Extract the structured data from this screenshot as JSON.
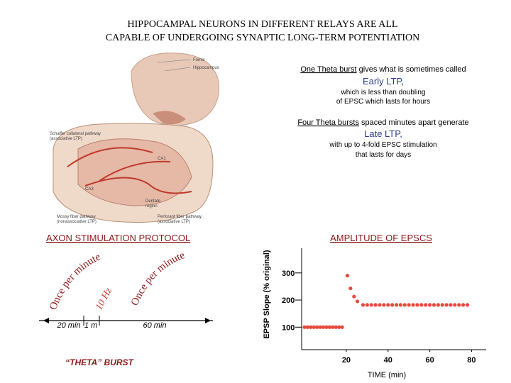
{
  "title": [
    "HIPPOCAMPAL NEURONS IN DIFFERENT RELAYS ARE ALL",
    "CAPABLE OF UNDERGOING SYNAPTIC LONG-TERM POTENTIATION"
  ],
  "figure": {
    "fornix": "Fornix",
    "hippocampus": "Hippocampus",
    "schaffer": [
      "Schaffer collateral pathway",
      "(associative LTP)"
    ],
    "ca1": "CA1",
    "ca3": "CA3",
    "dentate": [
      "Dentate",
      "region"
    ],
    "mossy": [
      "Mossy fiber pathway",
      "(nonassociative LTP)"
    ],
    "perforant": [
      "Perforant fiber pathway",
      "(associative LTP)"
    ]
  },
  "notes": {
    "early": {
      "lead": "One Theta burst",
      "rest": " gives what is sometimes called",
      "term": "Early LTP,",
      "lines": [
        "which is less than doubling",
        "of EPSC which lasts for hours"
      ]
    },
    "late": {
      "lead": "Four Theta bursts",
      "rest": " spaced minutes apart generate",
      "term": "Late LTP,",
      "lines": [
        "with up to 4-fold EPSC stimulation",
        "that lasts for days"
      ]
    }
  },
  "protocol": {
    "heading": "AXON STIMULATION PROTOCOL",
    "once_first": "Once per minute",
    "hz": "10 Hz",
    "once_second": "Once per minute",
    "t1": "20 min",
    "t2": "1 m",
    "t3": "60 min",
    "burst": "“THETA” BURST"
  },
  "plot": {
    "type": "scatter",
    "heading": "AMPLITUDE OF EPSCS",
    "y_label": "EPSP Slope (% original)",
    "x_label": "TIME (min)",
    "x": [
      0,
      1.5,
      3,
      4.5,
      6,
      7.5,
      9,
      10.5,
      12,
      13.5,
      15,
      16.5,
      18,
      20.5,
      22,
      23.7,
      25.3,
      28,
      30,
      32,
      34,
      36,
      38,
      40,
      42,
      44,
      46,
      48,
      50,
      52,
      54,
      56,
      58,
      60,
      62,
      64,
      66,
      68,
      70,
      72,
      74,
      76,
      78
    ],
    "values": [
      100,
      100,
      100,
      100,
      100,
      100,
      100,
      100,
      100,
      100,
      100,
      100,
      100,
      290,
      243,
      213,
      195,
      182,
      182,
      182,
      182,
      182,
      182,
      182,
      182,
      182,
      182,
      182,
      182,
      182,
      182,
      182,
      182,
      182,
      182,
      182,
      182,
      182,
      182,
      182,
      182,
      182,
      182
    ],
    "color": "#e8483c",
    "xlim": [
      -1.4,
      87
    ],
    "ylim": [
      17,
      391
    ],
    "xticks": [
      20,
      40,
      60,
      80
    ],
    "yticks": [
      100,
      200,
      300
    ]
  }
}
